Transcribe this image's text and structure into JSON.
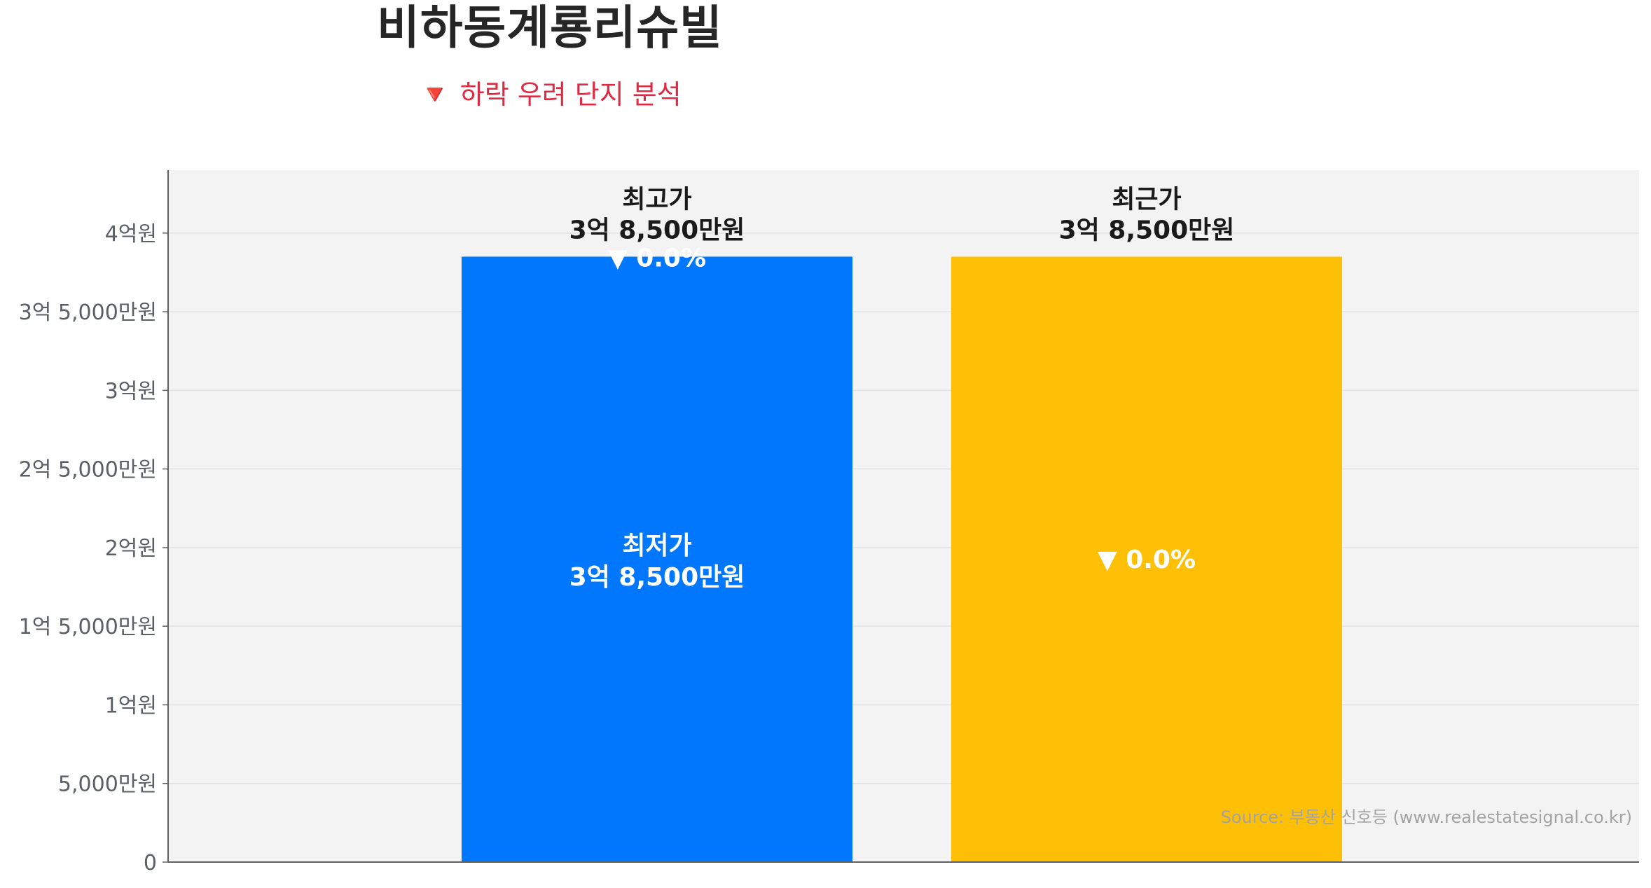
{
  "title": "비하동계룡리슈빌",
  "subtitle": "🔻 하락 우려 단지 분석",
  "source": "Source: 부동산 신호등 (www.realestatesignal.co.kr)",
  "colors": {
    "plot_background": "#f3f3f3",
    "grid": "#e2e2e2",
    "axis": "#5f5f5f",
    "bar_blue": "#0077fd",
    "bar_gold": "#fdc006",
    "subtitle": "#dc2b43"
  },
  "chart_data": {
    "type": "bar",
    "unit": "만원",
    "ylim": [
      0,
      44000
    ],
    "yticks": [
      {
        "value": 0,
        "label": "0"
      },
      {
        "value": 5000,
        "label": "5,000만원"
      },
      {
        "value": 10000,
        "label": "1억원"
      },
      {
        "value": 15000,
        "label": "1억 5,000만원"
      },
      {
        "value": 20000,
        "label": "2억원"
      },
      {
        "value": 25000,
        "label": "2억 5,000만원"
      },
      {
        "value": 30000,
        "label": "3억원"
      },
      {
        "value": 35000,
        "label": "3억 5,000만원"
      },
      {
        "value": 40000,
        "label": "4억원"
      }
    ],
    "grid": true,
    "bars": [
      {
        "color": "#0077fd",
        "value": 38500,
        "top_label_line1": "최고가",
        "top_label_line2": "3억 8,500만원",
        "inner_top_label": "▼ 0.0%",
        "inner_label_line1": "최저가",
        "inner_label_line2": "3억 8,500만원"
      },
      {
        "color": "#fdc006",
        "value": 38500,
        "top_label_line1": "최근가",
        "top_label_line2": "3억 8,500만원",
        "inner_label_line1": "▼ 0.0%"
      }
    ]
  }
}
